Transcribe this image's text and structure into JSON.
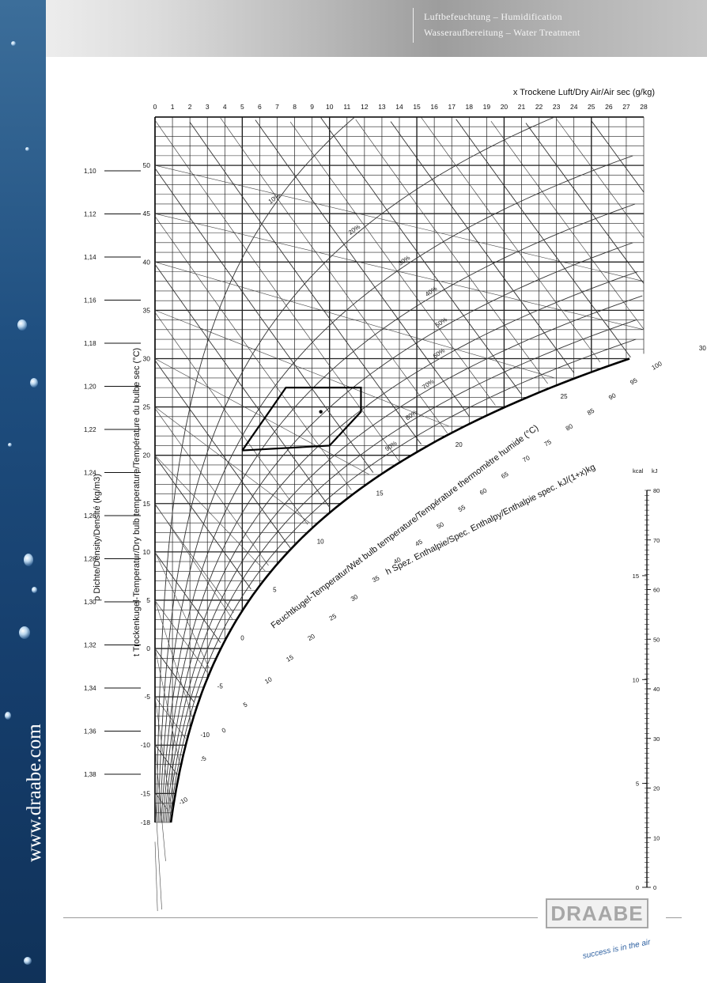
{
  "header": {
    "line1": "Luftbefeuchtung – Humidification",
    "line2": "Wasseraufbereitung – Water Treatment"
  },
  "sidebar": {
    "url": "www.draabe.com"
  },
  "footer": {
    "logo": "DRAABE",
    "tagline": "success is in the air"
  },
  "colors": {
    "sidebar": "#1f4f80",
    "grid": "#222222",
    "accent": "#2c5fa0"
  },
  "chart_data": {
    "type": "psychrometric",
    "x_axis": {
      "label": "x  Trockene Luft/Dry Air/Air sec (g/kg)",
      "ticks": [
        0,
        1,
        2,
        3,
        4,
        5,
        6,
        7,
        8,
        9,
        10,
        11,
        12,
        13,
        14,
        15,
        16,
        17,
        18,
        19,
        20,
        21,
        22,
        23,
        24,
        25,
        26,
        27,
        28
      ],
      "range": [
        0,
        28
      ]
    },
    "temp_axis": {
      "label": "t  Trockenkugel-Temperatur/Dry bulb temperature/Température du bulbe sec (°C)",
      "ticks": [
        -18,
        -15,
        -10,
        -5,
        0,
        5,
        10,
        15,
        20,
        25,
        30,
        35,
        40,
        45,
        50
      ],
      "range": [
        -18,
        55
      ]
    },
    "density_axis": {
      "label": "ρ  Dichte/Density/Densité (kg/m3)",
      "ticks": [
        "1,10",
        "1,12",
        "1,14",
        "1,16",
        "1,18",
        "1,20",
        "1,22",
        "1,24",
        "1,26",
        "1,28",
        "1,30",
        "1,32",
        "1,34",
        "1,36",
        "1,38"
      ]
    },
    "relative_humidity_curves": [
      "10%",
      "20%",
      "30%",
      "40%",
      "50%",
      "60%",
      "70%",
      "80%",
      "90%"
    ],
    "wet_bulb_label": "Feuchtkugel-Temperatur/Wet bulb temperature/Température thermomètre humide (°C)",
    "wet_bulb_ticks": [
      -10,
      -5,
      0,
      5,
      10,
      15,
      20,
      25,
      30
    ],
    "enthalpy_label": "h  Spez. Enthalpie/Spec. Enthalpy/Enthalpie spec. kJ/(1+x)kg",
    "enthalpy_ticks": [
      -10,
      -5,
      0,
      5,
      10,
      15,
      20,
      25,
      30,
      35,
      40,
      45,
      50,
      55,
      60,
      65,
      70,
      75,
      80,
      85,
      90,
      95,
      100
    ],
    "comfort_zone": {
      "polygon": [
        [
          5,
          20.5
        ],
        [
          7.5,
          27
        ],
        [
          11.8,
          27
        ],
        [
          11.8,
          24.5
        ],
        [
          10,
          21
        ],
        [
          5,
          20.5
        ]
      ],
      "point": [
        9.5,
        24.5
      ]
    },
    "side_scale": {
      "units": [
        "kcal",
        "kJ"
      ],
      "kcal_ticks": [
        0,
        5,
        10,
        15
      ],
      "kj_ticks": [
        0,
        10,
        20,
        30,
        40,
        50,
        60,
        70,
        80
      ]
    }
  }
}
